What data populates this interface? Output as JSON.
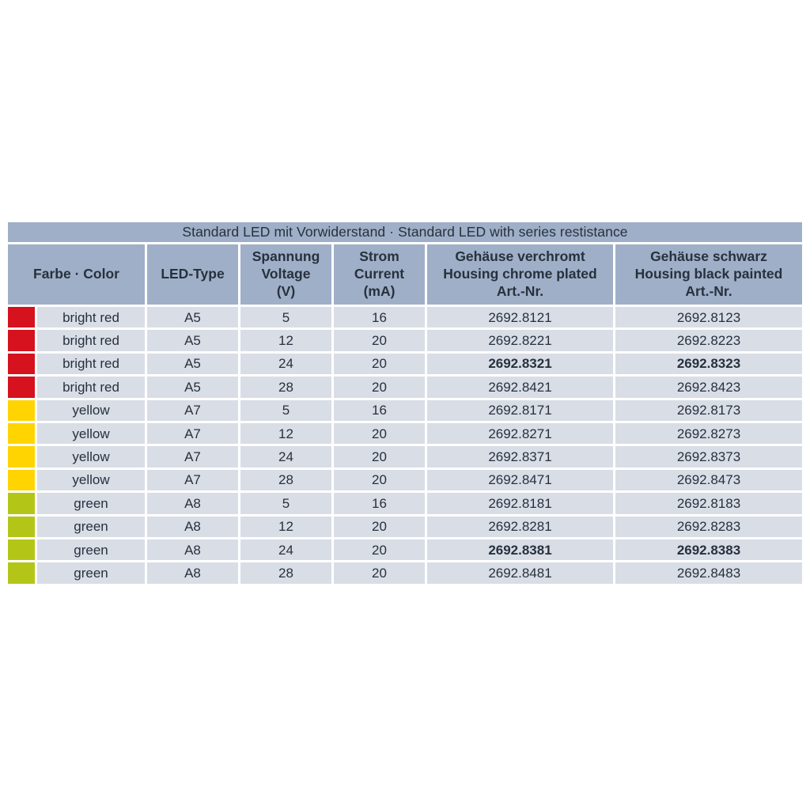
{
  "table": {
    "title": "Standard LED mit Vorwiderstand · Standard LED with series restistance",
    "colors": {
      "header_bg": "#9fafc7",
      "row_bg": "#d8dde6",
      "text": "#27313e",
      "red": "#d5121e",
      "yellow": "#ffd400",
      "green": "#b3c618"
    },
    "headers": {
      "farbe": "Farbe · Color",
      "led_type": "LED-Type",
      "voltage": "Spannung\nVoltage\n(V)",
      "current": "Strom\nCurrent\n(mA)",
      "chrome": "Gehäuse verchromt\nHousing chrome plated\nArt.-Nr.",
      "black": "Gehäuse schwarz\nHousing black painted\nArt.-Nr."
    },
    "rows": [
      {
        "swatch": "red",
        "color": "bright red",
        "led_type": "A5",
        "voltage": "5",
        "current": "16",
        "chrome": "2692.8121",
        "black": "2692.8123",
        "bold_art": false
      },
      {
        "swatch": "red",
        "color": "bright red",
        "led_type": "A5",
        "voltage": "12",
        "current": "20",
        "chrome": "2692.8221",
        "black": "2692.8223",
        "bold_art": false
      },
      {
        "swatch": "red",
        "color": "bright red",
        "led_type": "A5",
        "voltage": "24",
        "current": "20",
        "chrome": "2692.8321",
        "black": "2692.8323",
        "bold_art": true
      },
      {
        "swatch": "red",
        "color": "bright red",
        "led_type": "A5",
        "voltage": "28",
        "current": "20",
        "chrome": "2692.8421",
        "black": "2692.8423",
        "bold_art": false
      },
      {
        "swatch": "yellow",
        "color": "yellow",
        "led_type": "A7",
        "voltage": "5",
        "current": "16",
        "chrome": "2692.8171",
        "black": "2692.8173",
        "bold_art": false
      },
      {
        "swatch": "yellow",
        "color": "yellow",
        "led_type": "A7",
        "voltage": "12",
        "current": "20",
        "chrome": "2692.8271",
        "black": "2692.8273",
        "bold_art": false
      },
      {
        "swatch": "yellow",
        "color": "yellow",
        "led_type": "A7",
        "voltage": "24",
        "current": "20",
        "chrome": "2692.8371",
        "black": "2692.8373",
        "bold_art": false
      },
      {
        "swatch": "yellow",
        "color": "yellow",
        "led_type": "A7",
        "voltage": "28",
        "current": "20",
        "chrome": "2692.8471",
        "black": "2692.8473",
        "bold_art": false
      },
      {
        "swatch": "green",
        "color": "green",
        "led_type": "A8",
        "voltage": "5",
        "current": "16",
        "chrome": "2692.8181",
        "black": "2692.8183",
        "bold_art": false
      },
      {
        "swatch": "green",
        "color": "green",
        "led_type": "A8",
        "voltage": "12",
        "current": "20",
        "chrome": "2692.8281",
        "black": "2692.8283",
        "bold_art": false
      },
      {
        "swatch": "green",
        "color": "green",
        "led_type": "A8",
        "voltage": "24",
        "current": "20",
        "chrome": "2692.8381",
        "black": "2692.8383",
        "bold_art": true
      },
      {
        "swatch": "green",
        "color": "green",
        "led_type": "A8",
        "voltage": "28",
        "current": "20",
        "chrome": "2692.8481",
        "black": "2692.8483",
        "bold_art": false
      }
    ]
  }
}
